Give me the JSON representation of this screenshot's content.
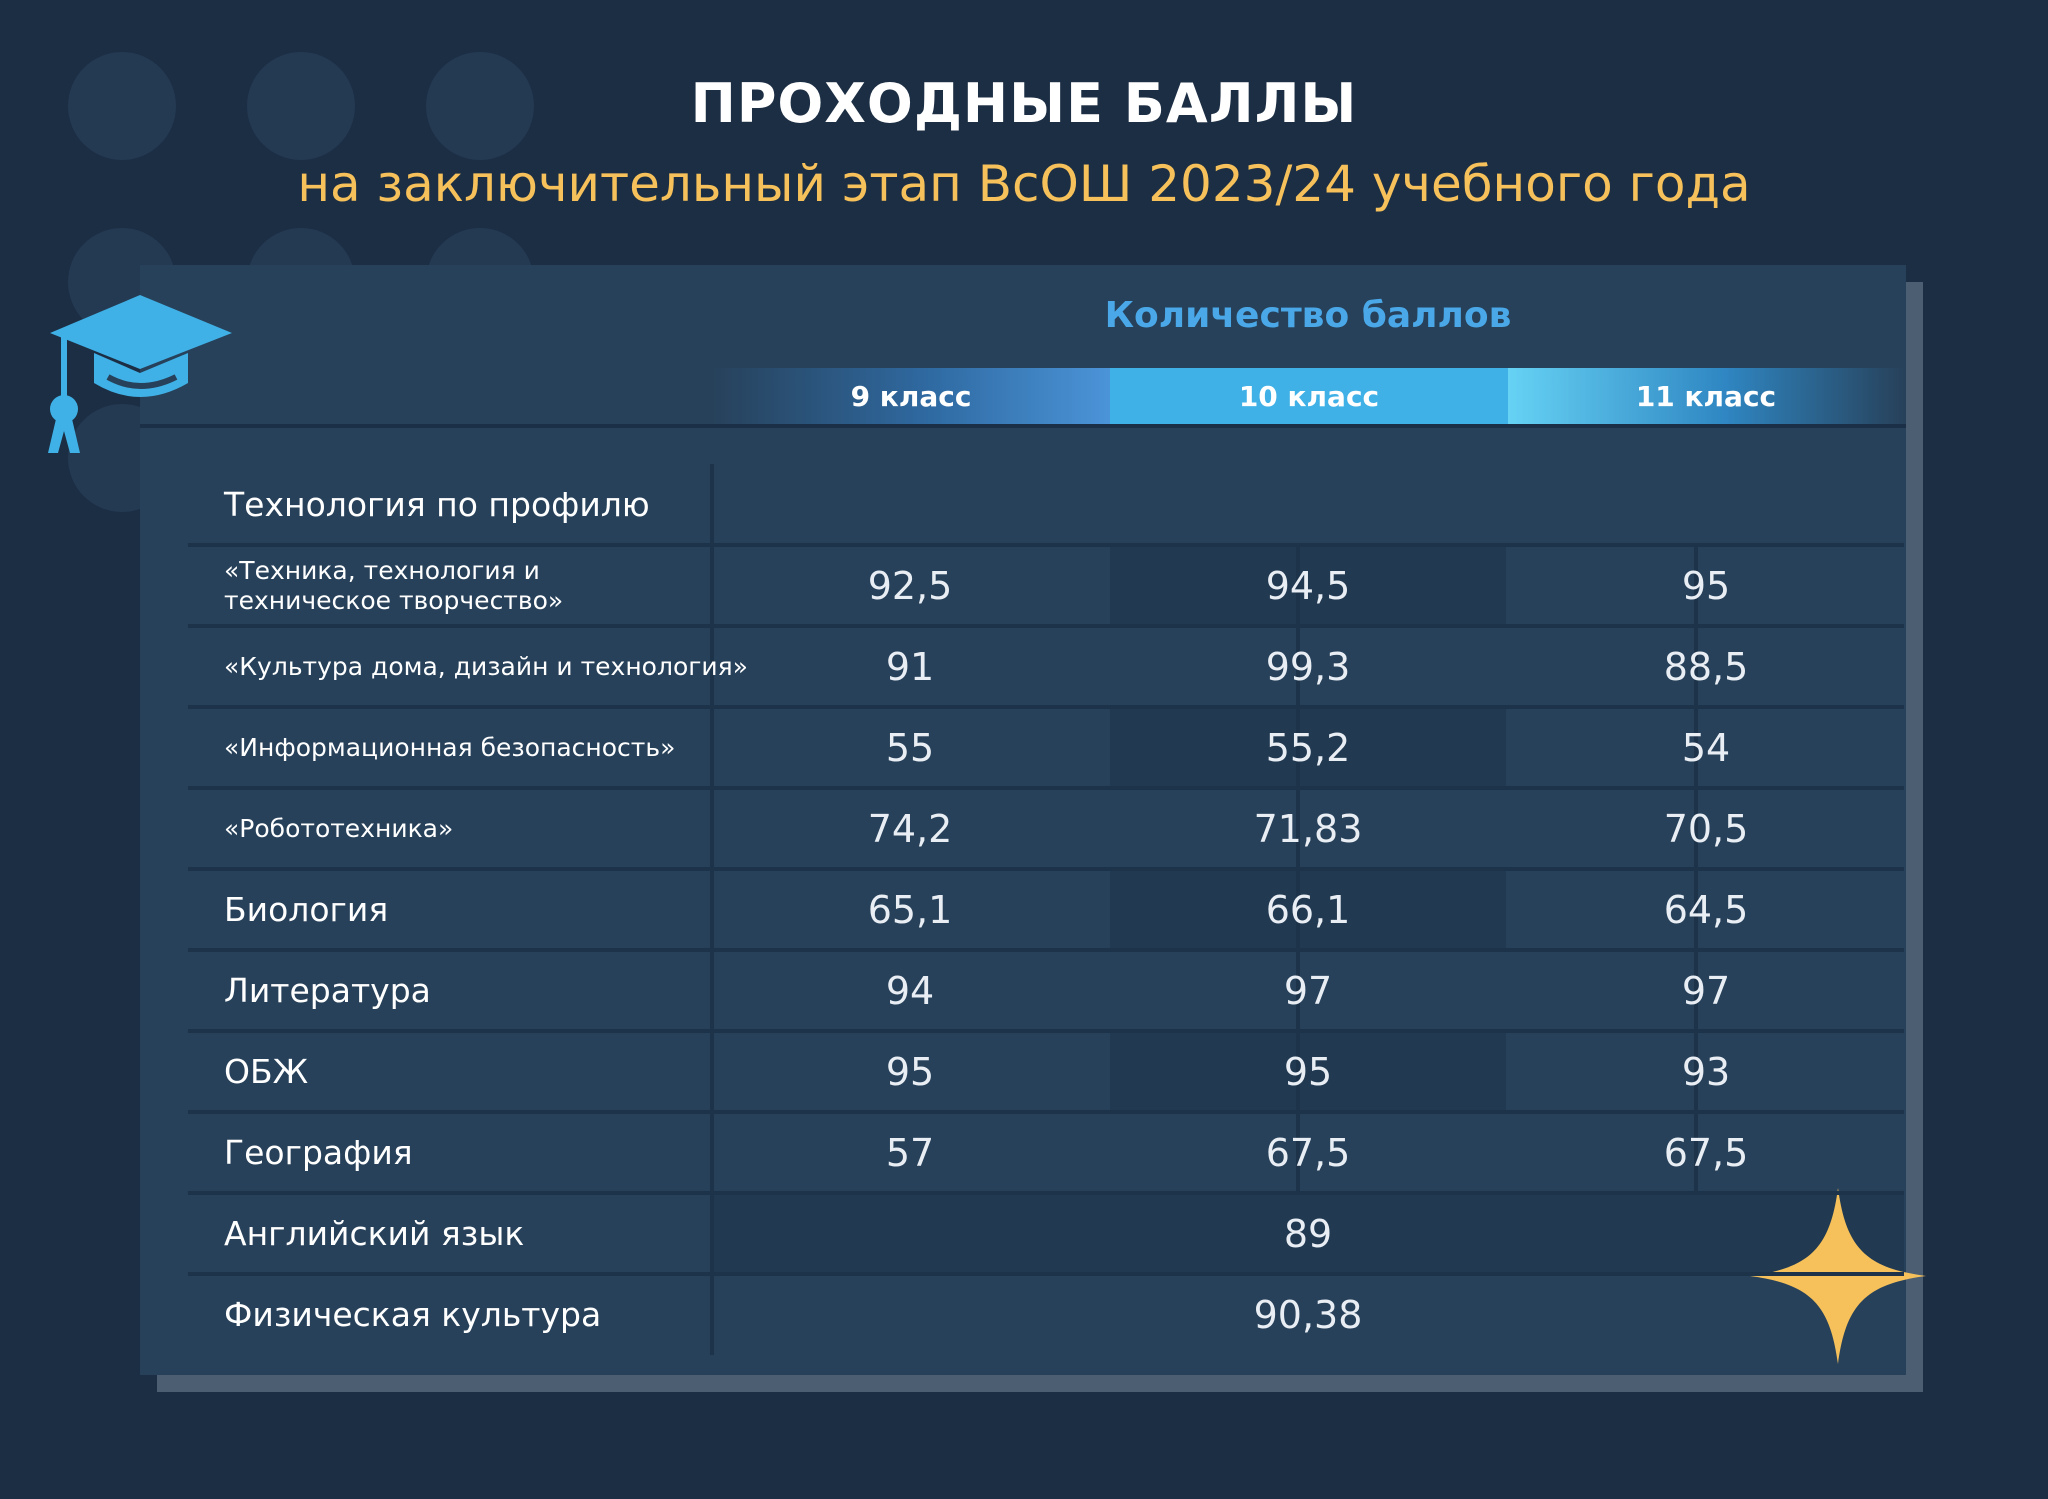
{
  "title": "ПРОХОДНЫЕ БАЛЛЫ",
  "subtitle": "на заключительный этап ВсОШ 2023/24 учебного года",
  "scores_header": "Количество баллов",
  "grades": [
    "9 класс",
    "10 класс",
    "11 класс"
  ],
  "section_header": "Технология по профилю",
  "rows": [
    {
      "subject": "«Техника, технология и\n техническое творчество»",
      "scores": [
        "92,5",
        "94,5",
        "95"
      ]
    },
    {
      "subject": "«Культура дома, дизайн и технология»",
      "scores": [
        "91",
        "99,3",
        "88,5"
      ]
    },
    {
      "subject": "«Информационная безопасность»",
      "scores": [
        "55",
        "55,2",
        "54"
      ]
    },
    {
      "subject": "«Робототехника»",
      "scores": [
        "74,2",
        "71,83",
        "70,5"
      ]
    },
    {
      "subject": "Биология",
      "scores": [
        "65,1",
        "66,1",
        "64,5"
      ]
    },
    {
      "subject": "Литература",
      "scores": [
        "94",
        "97",
        "97"
      ]
    },
    {
      "subject": "ОБЖ",
      "scores": [
        "95",
        "95",
        "93"
      ]
    },
    {
      "subject": "География",
      "scores": [
        "57",
        "67,5",
        "67,5"
      ]
    },
    {
      "subject": "Английский язык",
      "score_all": "89"
    },
    {
      "subject": "Физическая культура",
      "score_all": "90,38"
    }
  ],
  "colors": {
    "background": "#1c2e44",
    "card": "#27415a",
    "accent_yellow": "#f6c15a",
    "accent_blue": "#3fb1e6"
  },
  "icons": [
    "graduation-cap-icon",
    "sparkle-star-icon"
  ]
}
